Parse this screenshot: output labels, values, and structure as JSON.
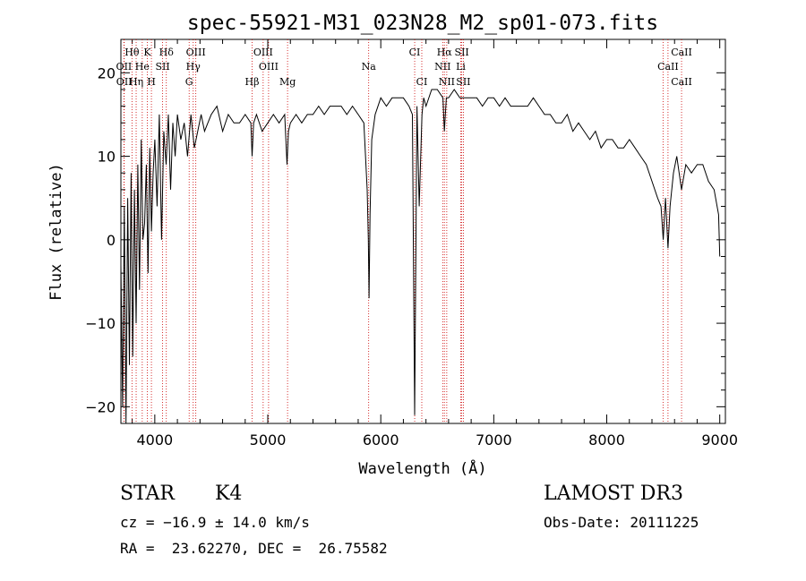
{
  "chart_data": {
    "type": "line",
    "title": "spec-55921-M31_023N28_M2_sp01-073.fits",
    "xlabel": "Wavelength (Å)",
    "ylabel": "Flux (relative)",
    "xlim": [
      3700,
      9050
    ],
    "ylim": [
      -22,
      24
    ],
    "xticks": [
      4000,
      5000,
      6000,
      7000,
      8000,
      9000
    ],
    "xtick_labels": [
      "4000",
      "5000",
      "6000",
      "7000",
      "8000",
      "9000"
    ],
    "yticks": [
      -20,
      -10,
      0,
      10,
      20
    ],
    "ytick_labels": [
      "−20",
      "−10",
      "0",
      "10",
      "20"
    ],
    "series": [
      {
        "name": "spectrum",
        "x": [
          3700,
          3715,
          3730,
          3745,
          3760,
          3775,
          3790,
          3805,
          3820,
          3835,
          3850,
          3865,
          3880,
          3895,
          3910,
          3925,
          3940,
          3955,
          3970,
          3985,
          4000,
          4020,
          4040,
          4060,
          4080,
          4100,
          4120,
          4140,
          4160,
          4180,
          4200,
          4230,
          4260,
          4290,
          4320,
          4350,
          4380,
          4410,
          4440,
          4470,
          4500,
          4550,
          4600,
          4650,
          4700,
          4750,
          4800,
          4850,
          4861,
          4875,
          4900,
          4950,
          5000,
          5050,
          5100,
          5150,
          5170,
          5183,
          5200,
          5250,
          5300,
          5350,
          5400,
          5450,
          5500,
          5550,
          5600,
          5650,
          5700,
          5750,
          5800,
          5850,
          5880,
          5890,
          5896,
          5905,
          5920,
          5950,
          6000,
          6050,
          6100,
          6150,
          6200,
          6250,
          6280,
          6300,
          6320,
          6340,
          6365,
          6380,
          6400,
          6450,
          6500,
          6550,
          6563,
          6580,
          6600,
          6650,
          6700,
          6750,
          6800,
          6850,
          6900,
          6950,
          7000,
          7050,
          7100,
          7150,
          7200,
          7250,
          7300,
          7350,
          7400,
          7450,
          7500,
          7550,
          7600,
          7650,
          7700,
          7750,
          7800,
          7850,
          7900,
          7950,
          8000,
          8050,
          8100,
          8150,
          8200,
          8250,
          8300,
          8350,
          8400,
          8450,
          8480,
          8500,
          8520,
          8542,
          8560,
          8590,
          8620,
          8662,
          8700,
          8750,
          8800,
          8850,
          8900,
          8950,
          8990,
          9000
        ],
        "values": [
          -3,
          -20,
          4,
          -22,
          5,
          -15,
          8,
          -14,
          6,
          -10,
          9,
          -6,
          12,
          0,
          2,
          9,
          -4,
          11,
          1,
          8,
          12,
          4,
          15,
          0,
          13,
          9,
          15,
          6,
          14,
          10,
          15,
          12,
          14,
          10,
          15,
          11,
          13,
          15,
          13,
          14,
          15,
          16,
          13,
          15,
          14,
          14,
          15,
          14,
          10,
          14,
          15,
          13,
          14,
          15,
          14,
          15,
          9,
          13,
          14,
          15,
          14,
          15,
          15,
          16,
          15,
          16,
          16,
          16,
          15,
          16,
          15,
          14,
          6,
          0,
          -7,
          3,
          12,
          15,
          17,
          16,
          17,
          17,
          17,
          16,
          15,
          -21,
          16,
          4,
          15,
          17,
          16,
          18,
          18,
          17,
          13,
          17,
          17,
          18,
          17,
          17,
          17,
          17,
          16,
          17,
          17,
          16,
          17,
          16,
          16,
          16,
          16,
          17,
          16,
          15,
          15,
          14,
          14,
          15,
          13,
          14,
          13,
          12,
          13,
          11,
          12,
          12,
          11,
          11,
          12,
          11,
          10,
          9,
          7,
          5,
          4,
          0,
          5,
          -1,
          4,
          8,
          10,
          6,
          9,
          8,
          9,
          9,
          7,
          6,
          3,
          -2
        ]
      }
    ],
    "line_labels": [
      {
        "label": "Hθ",
        "wavelength": 3798,
        "row": 1
      },
      {
        "label": "K",
        "wavelength": 3934,
        "row": 1
      },
      {
        "label": "Hδ",
        "wavelength": 4102,
        "row": 1
      },
      {
        "label": "OIII",
        "wavelength": 4363,
        "row": 1
      },
      {
        "label": "OIII",
        "wavelength": 4959,
        "row": 1
      },
      {
        "label": "CI",
        "wavelength": 6300,
        "row": 1
      },
      {
        "label": "Hα",
        "wavelength": 6563,
        "row": 1
      },
      {
        "label": "SII",
        "wavelength": 6717,
        "row": 1
      },
      {
        "label": "CaII",
        "wavelength": 8662,
        "row": 1
      },
      {
        "label": "OII",
        "wavelength": 3727,
        "row": 2
      },
      {
        "label": "He",
        "wavelength": 3889,
        "row": 2
      },
      {
        "label": "SII",
        "wavelength": 4069,
        "row": 2
      },
      {
        "label": "Hγ",
        "wavelength": 4340,
        "row": 2
      },
      {
        "label": "OIII",
        "wavelength": 5007,
        "row": 2
      },
      {
        "label": "NII",
        "wavelength": 6548,
        "row": 2
      },
      {
        "label": "Li",
        "wavelength": 6708,
        "row": 2
      },
      {
        "label": "CaII",
        "wavelength": 8542,
        "row": 2
      },
      {
        "label": "Na",
        "wavelength": 5893,
        "row": 2
      },
      {
        "label": "OII",
        "wavelength": 3729,
        "row": 3
      },
      {
        "label": "Hη",
        "wavelength": 3835,
        "row": 3
      },
      {
        "label": "H",
        "wavelength": 3970,
        "row": 3
      },
      {
        "label": "G",
        "wavelength": 4304,
        "row": 3
      },
      {
        "label": "Hβ",
        "wavelength": 4861,
        "row": 3
      },
      {
        "label": "Mg",
        "wavelength": 5175,
        "row": 3
      },
      {
        "label": "CI",
        "wavelength": 6363,
        "row": 3
      },
      {
        "label": "NII",
        "wavelength": 6584,
        "row": 3
      },
      {
        "label": "SII",
        "wavelength": 6731,
        "row": 3
      },
      {
        "label": "CaII",
        "wavelength": 8662,
        "row": 3
      }
    ],
    "marker_lines": [
      3727,
      3729,
      3798,
      3835,
      3889,
      3934,
      3970,
      4069,
      4102,
      4304,
      4340,
      4363,
      4861,
      4959,
      5007,
      5175,
      5893,
      6300,
      6363,
      6548,
      6563,
      6584,
      6708,
      6717,
      6731,
      8498,
      8542,
      8662
    ]
  },
  "info": {
    "object_class": "STAR",
    "subclass": "K4",
    "survey": "LAMOST DR3",
    "redshift": "cz = −16.9 ± 14.0 km/s",
    "obs_date": "Obs-Date: 20111225",
    "coords": "RA =  23.62270, DEC =  26.75582"
  },
  "colors": {
    "spectrum": "#000000",
    "marker": "#cc0000",
    "axes": "#000000"
  }
}
